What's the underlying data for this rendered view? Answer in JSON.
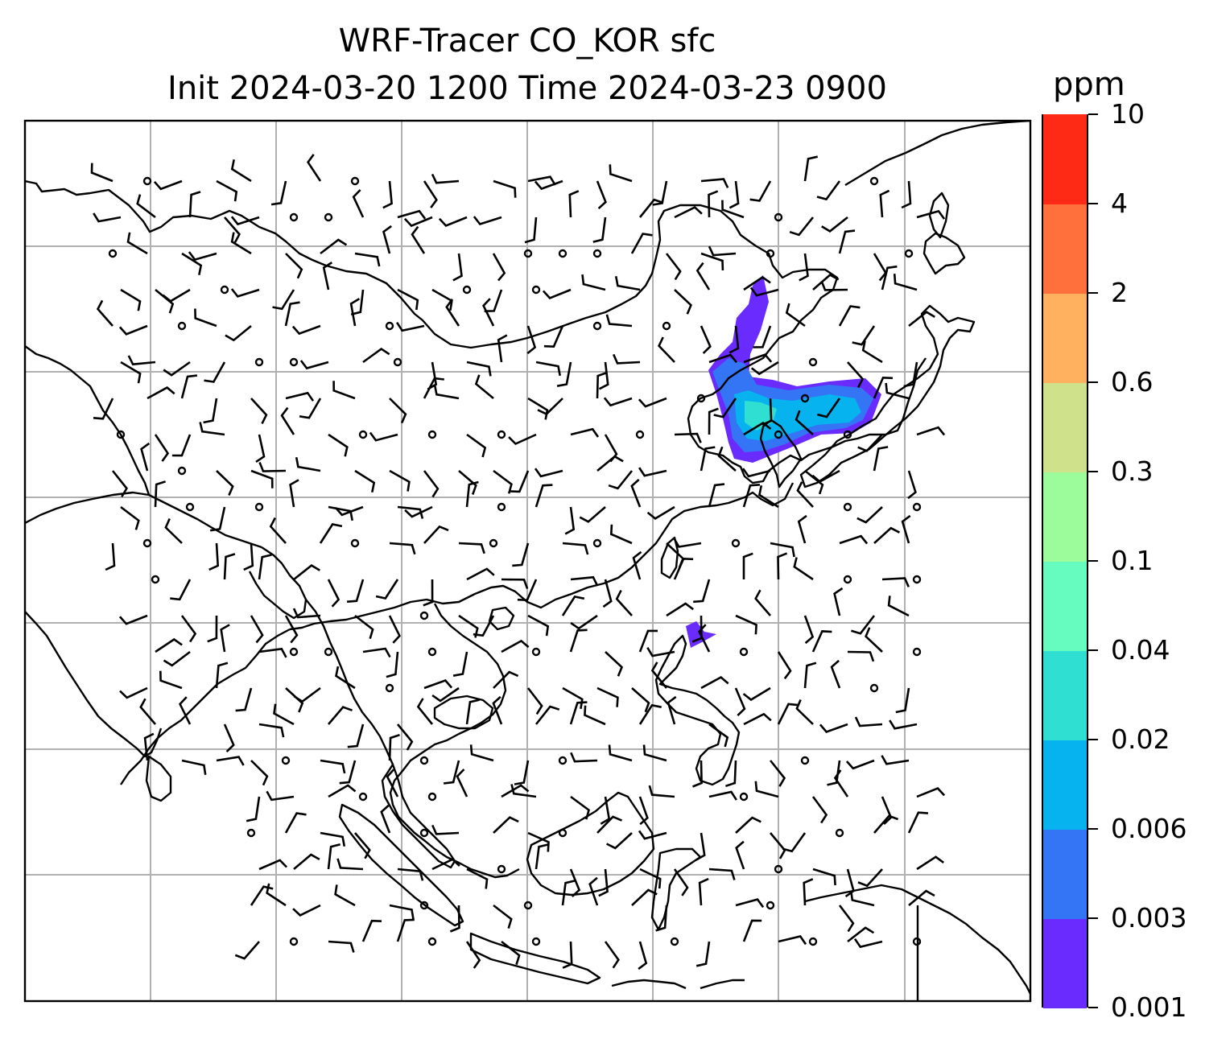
{
  "title_line1": "WRF-Tracer CO_KOR sfc",
  "title_line2": "Init 2024-03-20 1200 Time 2024-03-23 0900",
  "colorbar": {
    "unit": "ppm",
    "levels": [
      "0.001",
      "0.003",
      "0.006",
      "0.02",
      "0.04",
      "0.1",
      "0.3",
      "0.6",
      "2",
      "4",
      "10"
    ],
    "colors": [
      "#6a2bff",
      "#3475f5",
      "#06b3ef",
      "#2fdfd2",
      "#66fcbf",
      "#9cfc9b",
      "#cfe18a",
      "#ffb15f",
      "#ff703d",
      "#ff2a16"
    ]
  },
  "map": {
    "gridline_color": "#b0b0b0",
    "coastline_color": "#000000"
  }
}
